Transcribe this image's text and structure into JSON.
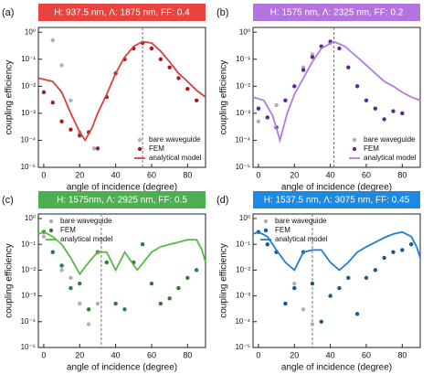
{
  "chart_data": [
    {
      "type": "line",
      "panel_label": "(a)",
      "title": "H: 937.5 nm, Λ: 1875 nm, FF: 0.4",
      "title_color": "#e8433f",
      "xlabel": "angle of incidence (degree)",
      "ylabel": "coupling efficiency",
      "log_y": true,
      "legend": "lower right",
      "xlim": [
        -3,
        90
      ],
      "xticks": [
        0,
        20,
        40,
        60,
        80
      ],
      "ylim": [
        1e-05,
        1.5
      ],
      "yticks": [
        {
          "value": 1e-05,
          "label": "10⁻⁵"
        },
        {
          "value": 0.0001,
          "label": "10⁻⁴"
        },
        {
          "value": 0.001,
          "label": "10⁻³"
        },
        {
          "value": 0.01,
          "label": "10⁻²"
        },
        {
          "value": 0.1,
          "label": "10⁻¹"
        },
        {
          "value": 1,
          "label": "10⁰"
        }
      ],
      "vline": 55,
      "series": [
        {
          "name": "bare waveguide",
          "mode": "markers",
          "color": "#b0b0b0",
          "x": [
            5,
            10,
            15,
            20,
            28,
            55
          ],
          "values": [
            0.5,
            0.06,
            0.003,
            0.0002,
            5e-05,
            0.4
          ]
        },
        {
          "name": "FEM",
          "mode": "markers",
          "color": "#a31f1f",
          "x": [
            0,
            5,
            10,
            15,
            20,
            25,
            30,
            35,
            40,
            45,
            50,
            55,
            60,
            65,
            70,
            75,
            80,
            85
          ],
          "values": [
            0.006,
            0.0025,
            0.0005,
            0.00025,
            0.00015,
            0.0002,
            5e-05,
            0.004,
            0.03,
            0.1,
            0.25,
            0.4,
            0.25,
            0.1,
            0.05,
            0.02,
            0.008,
            0.003
          ]
        },
        {
          "name": "analytical model",
          "mode": "line",
          "color": "#d9413c",
          "x": [
            -3,
            5,
            10,
            15,
            20,
            23,
            27,
            30,
            35,
            40,
            45,
            50,
            55,
            60,
            65,
            70,
            75,
            80,
            85,
            90
          ],
          "values": [
            0.02,
            0.015,
            0.006,
            0.001,
            0.0002,
            0.0001,
            0.0003,
            0.001,
            0.005,
            0.03,
            0.12,
            0.3,
            0.45,
            0.4,
            0.2,
            0.08,
            0.03,
            0.015,
            0.007,
            0.004
          ]
        }
      ]
    },
    {
      "type": "line",
      "panel_label": "(b)",
      "title": "H: 1575 nm, Λ: 2325 nm, FF: 0.2",
      "title_color": "#b474e0",
      "xlabel": "angle of incidence (degree)",
      "ylabel": "coupling efficiency",
      "log_y": true,
      "legend": "lower right",
      "xlim": [
        -3,
        90
      ],
      "xticks": [
        0,
        20,
        40,
        60,
        80
      ],
      "ylim": [
        1e-05,
        1.5
      ],
      "yticks": [
        {
          "value": 1e-05,
          "label": "10⁻⁵"
        },
        {
          "value": 0.0001,
          "label": "10⁻⁴"
        },
        {
          "value": 0.001,
          "label": "10⁻³"
        },
        {
          "value": 0.01,
          "label": "10⁻²"
        },
        {
          "value": 0.1,
          "label": "10⁻¹"
        },
        {
          "value": 1,
          "label": "10⁰"
        }
      ],
      "vline": 42,
      "series": [
        {
          "name": "bare waveguide",
          "mode": "markers",
          "color": "#b0b0b0",
          "x": [
            0,
            10,
            25,
            30,
            40
          ],
          "values": [
            0.0005,
            0.002,
            0.05,
            0.15,
            0.4
          ]
        },
        {
          "name": "FEM",
          "mode": "markers",
          "color": "#5b2a91",
          "x": [
            0,
            5,
            10,
            15,
            20,
            25,
            30,
            35,
            40,
            45,
            50,
            55,
            60,
            65,
            70,
            75,
            80
          ],
          "values": [
            0.0015,
            0.0007,
            0.0003,
            0.003,
            0.01,
            0.04,
            0.12,
            0.3,
            0.45,
            0.25,
            0.05,
            0.01,
            0.003,
            0.0015,
            0.0006,
            0.0012,
            0.001
          ]
        },
        {
          "name": "analytical model",
          "mode": "line",
          "color": "#b57be0",
          "x": [
            -3,
            3,
            8,
            12,
            16,
            20,
            25,
            30,
            35,
            42,
            48,
            55,
            60,
            65,
            70,
            75,
            80,
            85,
            90
          ],
          "values": [
            0.004,
            0.003,
            0.0008,
            0.0001,
            0.001,
            0.005,
            0.02,
            0.08,
            0.25,
            0.45,
            0.3,
            0.12,
            0.06,
            0.03,
            0.015,
            0.01,
            0.006,
            0.004,
            0.003
          ]
        }
      ]
    },
    {
      "type": "line",
      "panel_label": "(c)",
      "title": "H: 1575nm, Λ: 2925 nm, FF: 0.5",
      "title_color": "#4cb050",
      "xlabel": "angle of incidence (degree)",
      "ylabel": "coupling efficiency",
      "log_y": true,
      "legend": "upper left",
      "xlim": [
        -3,
        90
      ],
      "xticks": [
        0,
        20,
        40,
        60,
        80
      ],
      "ylim": [
        1e-05,
        1.5
      ],
      "yticks": [
        {
          "value": 1e-05,
          "label": "10⁻⁵"
        },
        {
          "value": 0.0001,
          "label": "10⁻⁴"
        },
        {
          "value": 0.001,
          "label": "10⁻³"
        },
        {
          "value": 0.01,
          "label": "10⁻²"
        },
        {
          "value": 0.1,
          "label": "10⁻¹"
        },
        {
          "value": 1,
          "label": "10⁰"
        }
      ],
      "vline": 32,
      "series": [
        {
          "name": "bare waveguide",
          "mode": "markers",
          "color": "#b0b0b0",
          "x": [
            0,
            5,
            10,
            15,
            20,
            25,
            30
          ],
          "values": [
            0.2,
            0.05,
            0.01,
            0.005,
            0.0005,
            8e-05,
            0.0005
          ]
        },
        {
          "name": "FEM",
          "mode": "markers",
          "color": "#2e7d32",
          "x": [
            0,
            5,
            10,
            15,
            20,
            25,
            30,
            35,
            40,
            45,
            50,
            55,
            60,
            65,
            70,
            75,
            80,
            85
          ],
          "values": [
            0.3,
            0.05,
            0.015,
            0.002,
            0.003,
            0.0003,
            0.05,
            0.02,
            0.0005,
            0.0003,
            0.02,
            0.1,
            0.003,
            0.0005,
            0.0008,
            0.002,
            0.005,
            0.01
          ]
        },
        {
          "name": "analytical model",
          "mode": "line",
          "color": "#58b947",
          "x": [
            -3,
            0,
            5,
            10,
            15,
            20,
            25,
            30,
            35,
            40,
            45,
            52,
            60,
            65,
            70,
            75,
            80,
            85,
            88,
            90
          ],
          "values": [
            0.25,
            0.3,
            0.2,
            0.1,
            0.03,
            0.007,
            0.02,
            0.05,
            0.05,
            0.01,
            0.05,
            0.01,
            0.05,
            0.08,
            0.1,
            0.12,
            0.15,
            0.15,
            0.06,
            0.02
          ]
        }
      ]
    },
    {
      "type": "line",
      "panel_label": "(d)",
      "title": "H: 1537.5 nm, Λ: 3075 nm, FF: 0.45",
      "title_color": "#1e88e5",
      "xlabel": "angle of incidence (degree)",
      "ylabel": "coupling efficiency",
      "log_y": true,
      "legend": "upper left",
      "xlim": [
        -3,
        90
      ],
      "xticks": [
        0,
        20,
        40,
        60,
        80
      ],
      "ylim": [
        1e-05,
        1.5
      ],
      "yticks": [
        {
          "value": 1e-05,
          "label": "10⁻⁵"
        },
        {
          "value": 0.0001,
          "label": "10⁻⁴"
        },
        {
          "value": 0.001,
          "label": "10⁻³"
        },
        {
          "value": 0.01,
          "label": "10⁻²"
        },
        {
          "value": 0.1,
          "label": "10⁻¹"
        },
        {
          "value": 1,
          "label": "10⁰"
        }
      ],
      "vline": 30,
      "series": [
        {
          "name": "bare waveguide",
          "mode": "markers",
          "color": "#b0b0b0",
          "x": [
            0,
            10,
            20,
            25,
            30
          ],
          "values": [
            0.3,
            0.05,
            0.003,
            0.0003,
            8e-05
          ]
        },
        {
          "name": "FEM",
          "mode": "markers",
          "color": "#1a5a8a",
          "x": [
            0,
            5,
            10,
            15,
            20,
            25,
            30,
            35,
            40,
            45,
            50,
            55,
            60,
            65,
            70,
            75,
            80,
            85
          ],
          "values": [
            0.3,
            0.1,
            0.05,
            0.0005,
            0.002,
            0.05,
            0.003,
            0.0001,
            0.001,
            0.002,
            0.005,
            0.0002,
            0.005,
            0.01,
            0.03,
            0.05,
            0.06,
            0.1
          ]
        },
        {
          "name": "analytical model",
          "mode": "line",
          "color": "#1f7fd0",
          "x": [
            -3,
            0,
            5,
            10,
            15,
            20,
            25,
            30,
            35,
            40,
            45,
            50,
            55,
            60,
            65,
            70,
            75,
            80,
            85,
            88,
            90
          ],
          "values": [
            0.25,
            0.3,
            0.2,
            0.06,
            0.02,
            0.01,
            0.05,
            0.06,
            0.06,
            0.02,
            0.01,
            0.02,
            0.05,
            0.08,
            0.12,
            0.18,
            0.25,
            0.3,
            0.2,
            0.08,
            0.03
          ]
        }
      ]
    }
  ]
}
